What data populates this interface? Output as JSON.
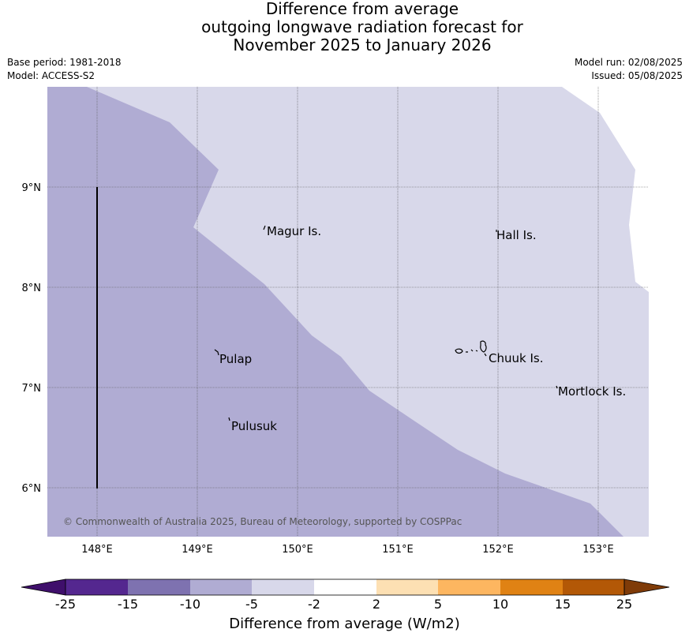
{
  "title": {
    "line1": "Difference from average",
    "line2": "outgoing longwave radiation forecast for",
    "line3": "November 2025 to January 2026"
  },
  "info": {
    "base_period": "Base period: 1981-2018",
    "model": "Model: ACCESS-S2",
    "model_run": "Model run: 02/08/2025",
    "issued": "Issued: 05/08/2025"
  },
  "map": {
    "longitude_labels": [
      "148°E",
      "149°E",
      "150°E",
      "151°E",
      "152°E",
      "153°E"
    ],
    "latitude_labels": [
      "9°N",
      "8°N",
      "7°N",
      "6°N"
    ],
    "places": [
      "Magur Is.",
      "Hall Is.",
      "Pulap",
      "Chuuk Is.",
      "Mortlock Is.",
      "Pulusuk"
    ],
    "copyright": "© Commonwealth of Australia 2025, Bureau of Meteorology, supported by COSPPac",
    "colors": {
      "region_minus10_to_minus5": "#b0acd3",
      "region_minus5_to_minus2": "#d8d8ea",
      "grid": "#555555"
    }
  },
  "colorbar": {
    "ticks": [
      "-25",
      "-15",
      "-10",
      "-5",
      "-2",
      "2",
      "5",
      "10",
      "15",
      "25"
    ],
    "colors": [
      "#3f0f6b",
      "#54278f",
      "#7e72b0",
      "#b0acd3",
      "#d8d8ea",
      "#ffffff",
      "#fde0b3",
      "#fdb660",
      "#e08214",
      "#b35806",
      "#7f3b08"
    ],
    "title": "Difference from average (W/m2)"
  }
}
